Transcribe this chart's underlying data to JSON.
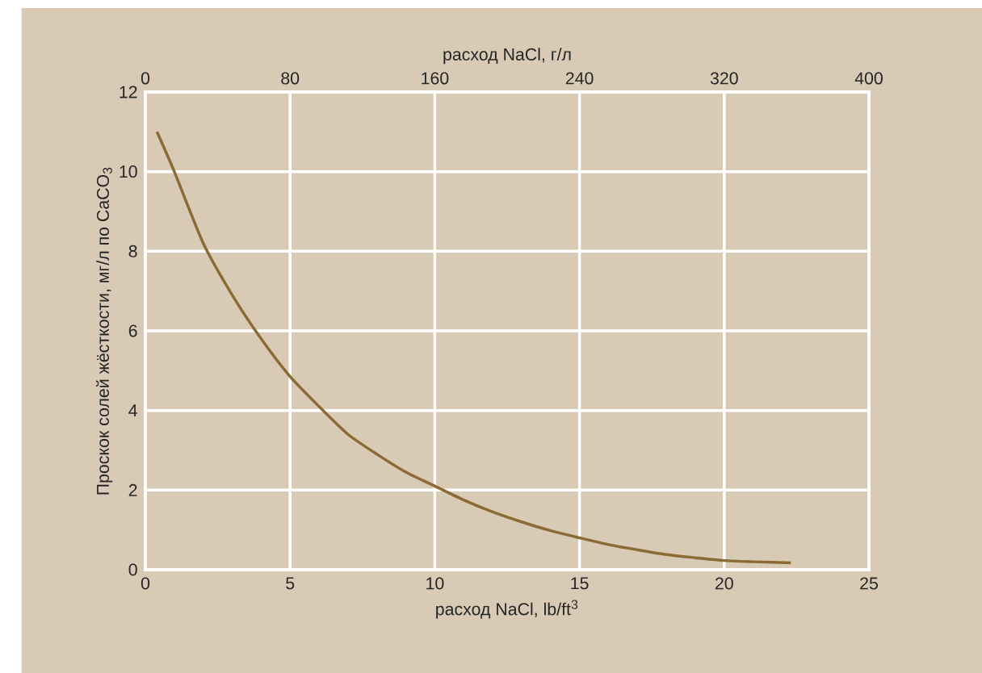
{
  "chart_data": {
    "type": "line",
    "xlabel": "расход NaCl, lb/ft$^{3}$",
    "x2label": "расход NaCl, г/л",
    "ylabel": "Проскок солей жёсткости, мг/л по CaCO$_{3}$",
    "xlim": [
      0,
      25
    ],
    "xticks": [
      0,
      5,
      10,
      15,
      20,
      25
    ],
    "x2lim": [
      0,
      400
    ],
    "x2ticks": [
      0,
      80,
      160,
      240,
      320,
      400
    ],
    "ylim": [
      0,
      12
    ],
    "yticks": [
      0,
      2,
      4,
      6,
      8,
      10,
      12
    ],
    "grid": true,
    "marker": "none",
    "line_style": "solid",
    "series": [
      {
        "color": "#8b6b35",
        "x": [
          0.4,
          1,
          2,
          3,
          4,
          5,
          6,
          7,
          8,
          9,
          10,
          11,
          12,
          13,
          14,
          15,
          16,
          17,
          18,
          19,
          20,
          21,
          22.3
        ],
        "values": [
          11,
          10,
          8.2,
          6.9,
          5.8,
          4.85,
          4.1,
          3.4,
          2.9,
          2.45,
          2.1,
          1.75,
          1.45,
          1.2,
          0.98,
          0.8,
          0.63,
          0.5,
          0.38,
          0.3,
          0.23,
          0.2,
          0.17
        ]
      }
    ]
  }
}
